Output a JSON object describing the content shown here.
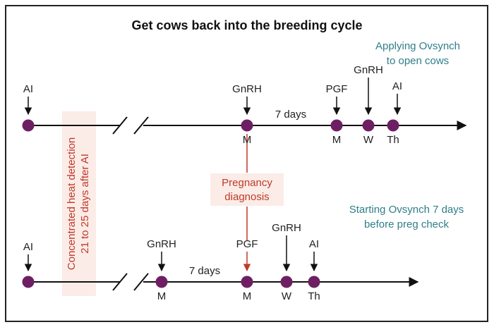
{
  "title": "Get cows back into the breeding cycle",
  "colors": {
    "border": "#222222",
    "dot": "#6e1f63",
    "note_text": "#2f7f8a",
    "highlight_text": "#c0392b",
    "highlight_bg": "#fbece7",
    "highlight_line": "#c0392b"
  },
  "heat_detection": {
    "line1": "Concentrated heat detection",
    "line2": "21 to 25 days after AI"
  },
  "pregnancy_diagnosis": {
    "line1": "Pregnancy",
    "line2": "diagnosis"
  },
  "top_timeline": {
    "note_line1": "Applying Ovsynch",
    "note_line2": "to open cows",
    "interval_label": "7 days",
    "events": [
      {
        "label": "AI",
        "day": ""
      },
      {
        "label": "GnRH",
        "day": "M"
      },
      {
        "label": "PGF",
        "day": "M"
      },
      {
        "label": "GnRH",
        "day": "W"
      },
      {
        "label": "AI",
        "day": "Th"
      }
    ]
  },
  "bottom_timeline": {
    "note_line1": "Starting Ovsynch 7 days",
    "note_line2": "before preg check",
    "interval_label": "7 days",
    "events": [
      {
        "label": "AI",
        "day": ""
      },
      {
        "label": "GnRH",
        "day": "M"
      },
      {
        "label": "PGF",
        "day": "M"
      },
      {
        "label": "GnRH",
        "day": "W"
      },
      {
        "label": "AI",
        "day": "Th"
      }
    ]
  }
}
